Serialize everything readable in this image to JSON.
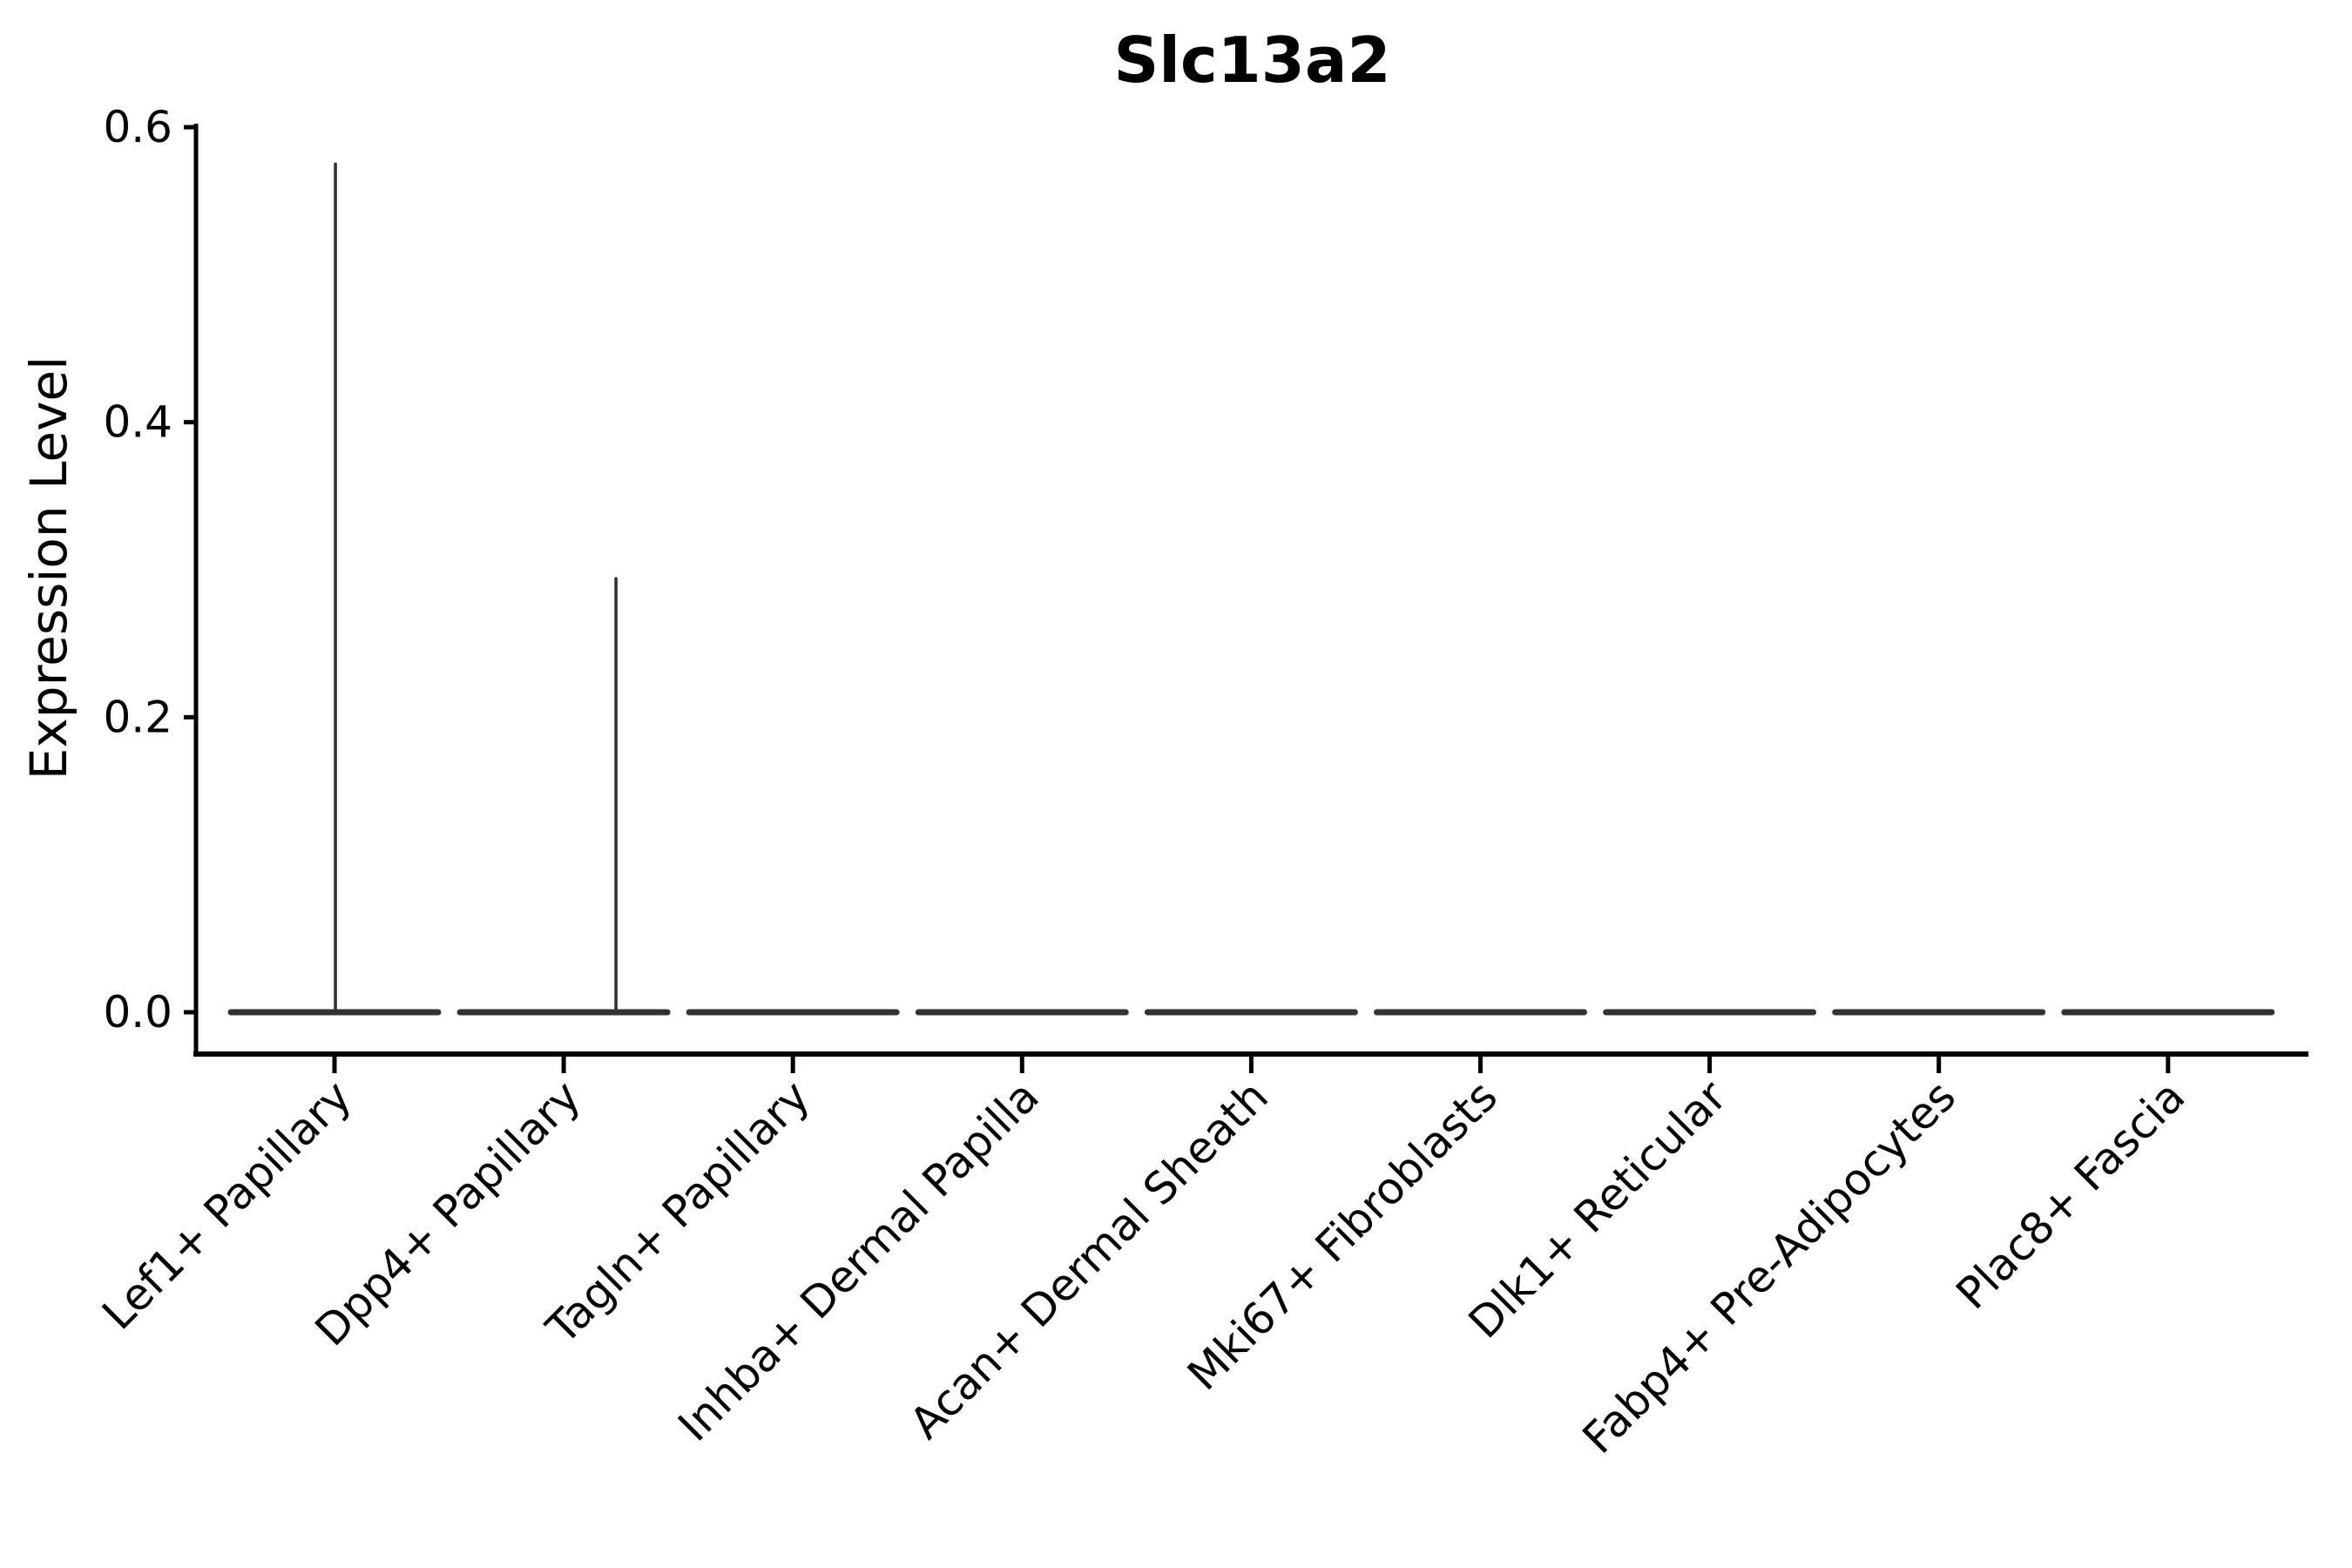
{
  "figure": {
    "background": "#ffffff"
  },
  "chart_data": {
    "type": "violin",
    "title": "Slc13a2",
    "xlabel": "",
    "ylabel": "Expression Level",
    "ylim": [
      0.0,
      0.6
    ],
    "ytick_labels": [
      "0.0",
      "0.2",
      "0.4",
      "0.6"
    ],
    "ytick_values": [
      0.0,
      0.2,
      0.4,
      0.6
    ],
    "grid": false,
    "legend_position": "none",
    "categories": [
      "Lef1+ Papillary",
      "Dpp4+ Papillary",
      "Tagln+ Papillary",
      "Inhba+ Dermal Papilla",
      "Acan+ Dermal Sheath",
      "Mki67+ Fibroblasts",
      "Dlk1+ Reticular",
      "Fabp4+ Pre-Adipocytes",
      "Plac8+ Fascia"
    ],
    "violins": [
      {
        "category": "Lef1+ Papillary",
        "bulk_value": 0.0,
        "tail_max": 0.575,
        "tail_x_offset_frac": 0.004
      },
      {
        "category": "Dpp4+ Papillary",
        "bulk_value": 0.0,
        "tail_max": 0.294,
        "tail_x_offset_frac": 0.228
      },
      {
        "category": "Tagln+ Papillary",
        "bulk_value": 0.0,
        "tail_max": 0.0,
        "tail_x_offset_frac": 0.0
      },
      {
        "category": "Inhba+ Dermal Papilla",
        "bulk_value": 0.0,
        "tail_max": 0.0,
        "tail_x_offset_frac": 0.0
      },
      {
        "category": "Acan+ Dermal Sheath",
        "bulk_value": 0.0,
        "tail_max": 0.0,
        "tail_x_offset_frac": 0.0
      },
      {
        "category": "Mki67+ Fibroblasts",
        "bulk_value": 0.0,
        "tail_max": 0.0,
        "tail_x_offset_frac": 0.0
      },
      {
        "category": "Dlk1+ Reticular",
        "bulk_value": 0.0,
        "tail_max": 0.0,
        "tail_x_offset_frac": 0.0
      },
      {
        "category": "Fabp4+ Pre-Adipocytes",
        "bulk_value": 0.0,
        "tail_max": 0.0,
        "tail_x_offset_frac": 0.0
      },
      {
        "category": "Plac8+ Fascia",
        "bulk_value": 0.0,
        "tail_max": 0.0,
        "tail_x_offset_frac": 0.0
      }
    ]
  },
  "colors": {
    "violin": "#333333",
    "axis": "#000000",
    "text": "#000000"
  }
}
